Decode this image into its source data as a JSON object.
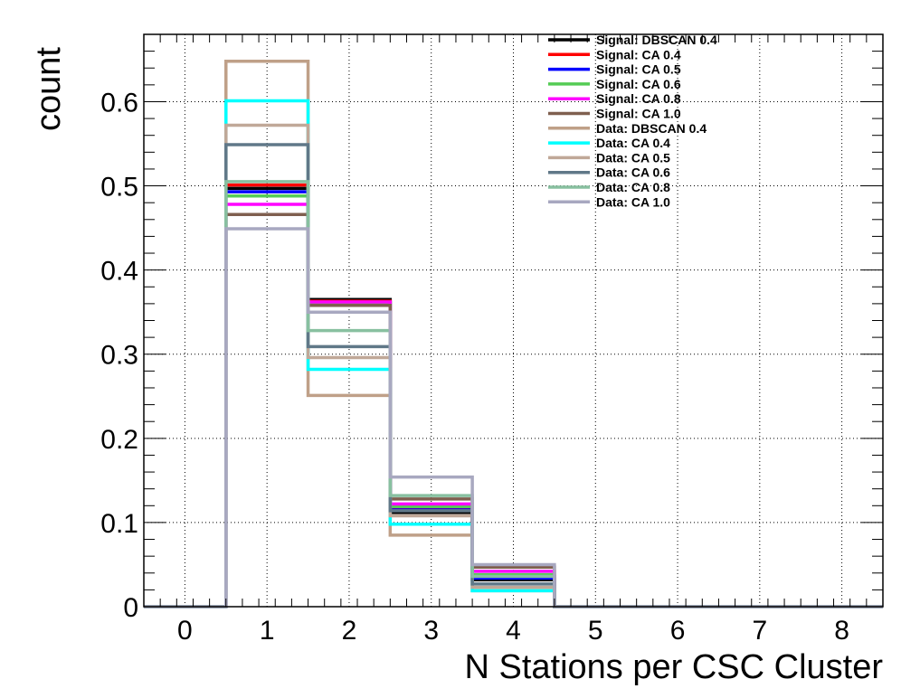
{
  "chart_data": {
    "type": "histogram-step",
    "xlabel": "N Stations per CSC Cluster",
    "ylabel": "count",
    "xlim": [
      -0.5,
      8.5
    ],
    "ylim": [
      0,
      0.68
    ],
    "x_ticks": [
      "0",
      "1",
      "2",
      "3",
      "4",
      "5",
      "6",
      "7",
      "8"
    ],
    "y_ticks": [
      "0",
      "0.1",
      "0.2",
      "0.3",
      "0.4",
      "0.5",
      "0.6"
    ],
    "y_tick_values": [
      0,
      0.1,
      0.2,
      0.3,
      0.4,
      0.5,
      0.6
    ],
    "grid": true,
    "legend_position": "top-right",
    "bin_edges": [
      -0.5,
      0.5,
      1.5,
      2.5,
      3.5,
      4.5,
      5.5,
      6.5,
      7.5,
      8.5
    ],
    "series": [
      {
        "name": "Signal: DBSCAN 0.4",
        "color": "#000000",
        "values": [
          0,
          0.497,
          0.365,
          0.112,
          0.032,
          0,
          0,
          0,
          0
        ]
      },
      {
        "name": "Signal: CA 0.4",
        "color": "#ff0000",
        "values": [
          0,
          0.501,
          0.363,
          0.117,
          0.036,
          0,
          0,
          0,
          0
        ]
      },
      {
        "name": "Signal: CA 0.5",
        "color": "#0000ff",
        "values": [
          0,
          0.493,
          0.361,
          0.115,
          0.034,
          0,
          0,
          0,
          0
        ]
      },
      {
        "name": "Signal: CA 0.6",
        "color": "#55cc55",
        "values": [
          0,
          0.488,
          0.359,
          0.119,
          0.038,
          0,
          0,
          0,
          0
        ]
      },
      {
        "name": "Signal: CA 0.8",
        "color": "#ff00ff",
        "values": [
          0,
          0.478,
          0.362,
          0.122,
          0.042,
          0,
          0,
          0,
          0
        ]
      },
      {
        "name": "Signal: CA 1.0",
        "color": "#7f5f4f",
        "values": [
          0,
          0.466,
          0.358,
          0.128,
          0.047,
          0,
          0,
          0,
          0
        ]
      },
      {
        "name": "Data: DBSCAN 0.4",
        "color": "#bfa088",
        "values": [
          0,
          0.648,
          0.251,
          0.085,
          0.019,
          0,
          0,
          0,
          0
        ]
      },
      {
        "name": "Data: CA 0.4",
        "color": "#00ffff",
        "values": [
          0,
          0.601,
          0.282,
          0.098,
          0.019,
          0,
          0,
          0,
          0
        ]
      },
      {
        "name": "Data: CA 0.5",
        "color": "#c0a898",
        "values": [
          0,
          0.572,
          0.296,
          0.108,
          0.023,
          0,
          0,
          0,
          0
        ]
      },
      {
        "name": "Data: CA 0.6",
        "color": "#607888",
        "values": [
          0,
          0.549,
          0.309,
          0.114,
          0.027,
          0,
          0,
          0,
          0
        ]
      },
      {
        "name": "Data: CA 0.8",
        "color": "#88c0a0",
        "values": [
          0,
          0.505,
          0.328,
          0.132,
          0.036,
          0,
          0,
          0,
          0
        ]
      },
      {
        "name": "Data: CA 1.0",
        "color": "#a8a8c0",
        "values": [
          0,
          0.449,
          0.35,
          0.154,
          0.05,
          0,
          0,
          0,
          0
        ]
      }
    ]
  }
}
